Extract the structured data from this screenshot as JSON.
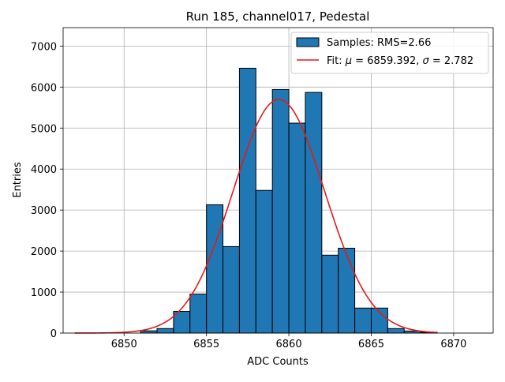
{
  "chart_data": {
    "type": "bar",
    "title": "Run 185, channel017, Pedestal",
    "xlabel": "ADC Counts",
    "ylabel": "Entries",
    "xlim": [
      6846.3,
      6872.4
    ],
    "ylim": [
      0,
      7450
    ],
    "xticks": [
      6850,
      6855,
      6860,
      6865,
      6870
    ],
    "yticks": [
      0,
      1000,
      2000,
      3000,
      4000,
      5000,
      6000,
      7000
    ],
    "grid": true,
    "legend_position": "top-right",
    "histogram": {
      "name": "Samples: RMS=2.66",
      "color": "#1f77b4",
      "edgecolor": "#000000",
      "bin_width": 1,
      "bins": [
        {
          "x0": 6851,
          "x1": 6852,
          "count": 55
        },
        {
          "x0": 6852,
          "x1": 6853,
          "count": 110
        },
        {
          "x0": 6853,
          "x1": 6854,
          "count": 530
        },
        {
          "x0": 6854,
          "x1": 6855,
          "count": 950
        },
        {
          "x0": 6855,
          "x1": 6856,
          "count": 3130
        },
        {
          "x0": 6856,
          "x1": 6857,
          "count": 2110
        },
        {
          "x0": 6857,
          "x1": 6858,
          "count": 6460
        },
        {
          "x0": 6858,
          "x1": 6859,
          "count": 3480
        },
        {
          "x0": 6859,
          "x1": 6860,
          "count": 5940
        },
        {
          "x0": 6860,
          "x1": 6861,
          "count": 5120
        },
        {
          "x0": 6861,
          "x1": 6862,
          "count": 5870
        },
        {
          "x0": 6862,
          "x1": 6863,
          "count": 1900
        },
        {
          "x0": 6863,
          "x1": 6864,
          "count": 2070
        },
        {
          "x0": 6864,
          "x1": 6865,
          "count": 610
        },
        {
          "x0": 6865,
          "x1": 6866,
          "count": 610
        },
        {
          "x0": 6866,
          "x1": 6867,
          "count": 110
        },
        {
          "x0": 6867,
          "x1": 6868,
          "count": 50
        },
        {
          "x0": 6868,
          "x1": 6869,
          "count": 20
        }
      ]
    },
    "fit": {
      "name_prefix": "Fit: ",
      "mu_symbol": "μ",
      "sigma_symbol": "σ",
      "name_mid": " = 6859.392, ",
      "name_end": " = 2.782",
      "color": "#e41a1c",
      "mu": 6859.392,
      "sigma": 2.782,
      "amplitude": 5700,
      "x_range": [
        6847,
        6869
      ]
    }
  }
}
